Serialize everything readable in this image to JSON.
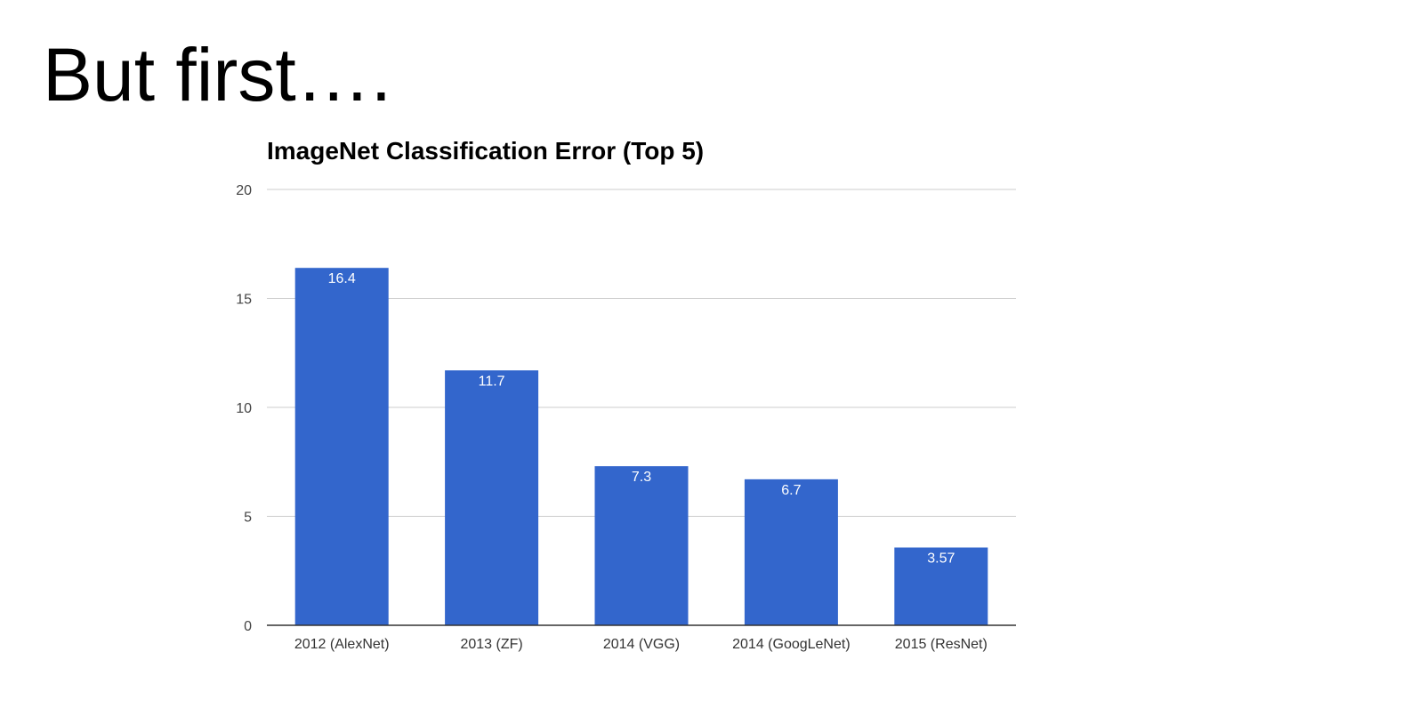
{
  "slide": {
    "title": "But first…."
  },
  "colors": {
    "bar": "#3366cc",
    "grid": "#cccccc",
    "axis": "#333333",
    "tick_text": "#444444",
    "label_text": "#ffffff"
  },
  "chart_data": {
    "type": "bar",
    "title": "ImageNet Classification Error (Top 5)",
    "xlabel": "",
    "ylabel": "",
    "categories": [
      "2012 (AlexNet)",
      "2013 (ZF)",
      "2014 (VGG)",
      "2014 (GoogLeNet)",
      "2015 (ResNet)"
    ],
    "values": [
      16.4,
      11.7,
      7.3,
      6.7,
      3.57
    ],
    "value_labels": [
      "16.4",
      "11.7",
      "7.3",
      "6.7",
      "3.57"
    ],
    "ylim": [
      0,
      20
    ],
    "yticks": [
      "0",
      "5",
      "10",
      "15",
      "20"
    ],
    "grid": true,
    "legend": "none"
  }
}
